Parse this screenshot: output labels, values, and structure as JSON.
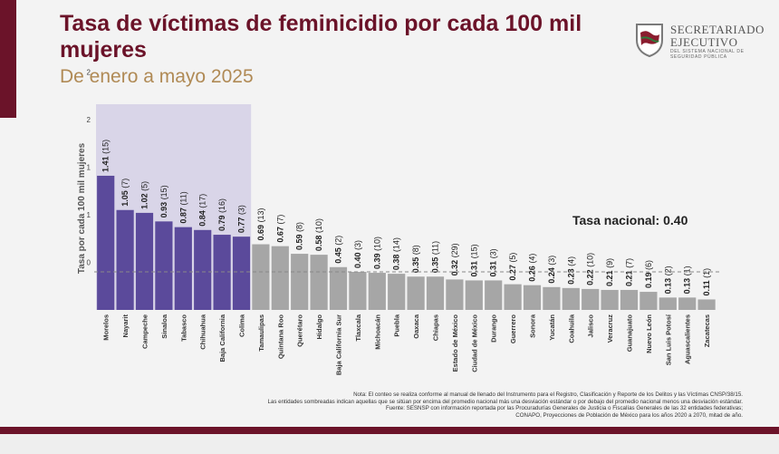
{
  "header": {
    "title": "Tasa de víctimas de feminicidio por cada 100 mil mujeres",
    "subtitle": "De enero a mayo 2025"
  },
  "logo": {
    "line1": "SECRETARIADO",
    "line2": "EJECUTIVO",
    "line3": "DEL SISTEMA NACIONAL DE SEGURIDAD PÚBLICA"
  },
  "national_rate_label": "Tasa nacional: 0.40",
  "notes": [
    "Nota: El conteo se realiza conforme al manual de llenado del Instrumento para el Registro, Clasificación y Reporte de los Delitos y las Víctimas CNSP/38/15.",
    "Las entidades sombreadas indican aquellas que se sitúan por encima del promedio nacional más una desviación estándar o por debajo del promedio nacional menos una desviación estándar.",
    "Fuente: SESNSP con información reportada por las Procuradurías Generales de Justicia o Fiscalías Generales de las 32 entidades federativas;",
    "CONAPO, Proyecciones de Población de México para los años 2020 a 2070, mitad de año."
  ],
  "colors": {
    "brand": "#6b1329",
    "gold": "#b08a55",
    "highlight_bar": "#5b4a9b",
    "regular_bar": "#a6a6a6",
    "shade": "#d9d5e8"
  },
  "chart_data": {
    "type": "bar",
    "ylabel": "Tasa por cada 100 mil mujeres",
    "yticks": [
      "0",
      "1",
      "1",
      "2",
      "2"
    ],
    "national_rate": 0.4,
    "categories": [
      "Morelos",
      "Nayarit",
      "Campeche",
      "Sinaloa",
      "Tabasco",
      "Chihuahua",
      "Baja California",
      "Colima",
      "Tamaulipas",
      "Quintana Roo",
      "Querétaro",
      "Hidalgo",
      "Baja California Sur",
      "Tlaxcala",
      "Michoacán",
      "Puebla",
      "Oaxaca",
      "Chiapas",
      "Estado de México",
      "Ciudad de México",
      "Durango",
      "Guerrero",
      "Sonora",
      "Yucatán",
      "Coahuila",
      "Jalisco",
      "Veracruz",
      "Guanajuato",
      "Nuevo León",
      "San Luis Potosí",
      "Aguascalientes",
      "Zacatecas"
    ],
    "values": [
      1.41,
      1.05,
      1.02,
      0.93,
      0.87,
      0.84,
      0.79,
      0.77,
      0.69,
      0.67,
      0.59,
      0.58,
      0.45,
      0.4,
      0.39,
      0.38,
      0.35,
      0.35,
      0.32,
      0.31,
      0.31,
      0.27,
      0.26,
      0.24,
      0.23,
      0.22,
      0.21,
      0.21,
      0.19,
      0.13,
      0.13,
      0.11
    ],
    "counts": [
      15,
      7,
      5,
      15,
      11,
      17,
      16,
      3,
      13,
      7,
      8,
      10,
      2,
      3,
      10,
      14,
      8,
      11,
      29,
      15,
      3,
      5,
      4,
      3,
      4,
      10,
      9,
      7,
      6,
      2,
      1,
      1
    ],
    "highlighted": [
      true,
      true,
      true,
      true,
      true,
      true,
      true,
      true,
      false,
      false,
      false,
      false,
      false,
      false,
      false,
      false,
      false,
      false,
      false,
      false,
      false,
      false,
      false,
      false,
      false,
      false,
      false,
      false,
      false,
      false,
      false,
      false
    ]
  }
}
